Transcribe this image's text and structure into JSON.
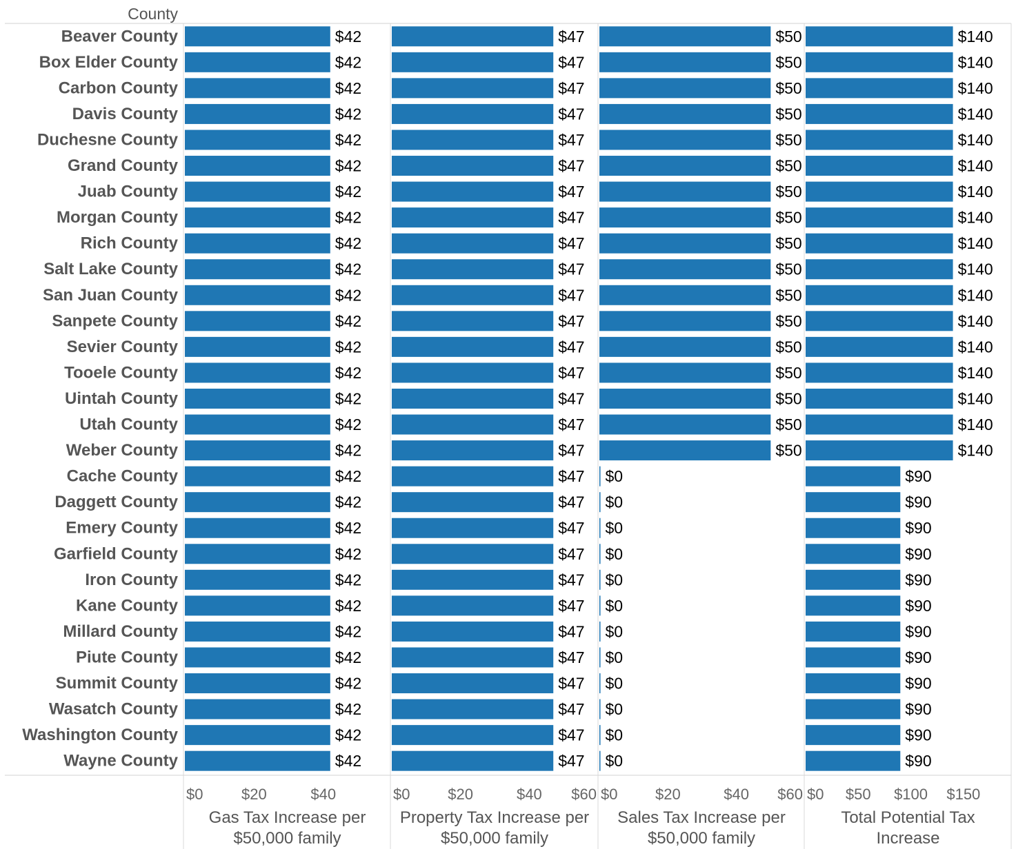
{
  "chart_data": {
    "type": "bar",
    "orientation": "horizontal",
    "row_header": "County",
    "categories": [
      "Beaver County",
      "Box Elder County",
      "Carbon County",
      "Davis County",
      "Duchesne County",
      "Grand County",
      "Juab County",
      "Morgan County",
      "Rich County",
      "Salt Lake County",
      "San Juan County",
      "Sanpete County",
      "Sevier County",
      "Tooele County",
      "Uintah County",
      "Utah County",
      "Weber County",
      "Cache County",
      "Daggett County",
      "Emery County",
      "Garfield County",
      "Iron County",
      "Kane County",
      "Millard County",
      "Piute County",
      "Summit County",
      "Wasatch County",
      "Washington County",
      "Wayne County"
    ],
    "series": [
      {
        "name": "Gas Tax Increase per $50,000 family",
        "values": [
          42,
          42,
          42,
          42,
          42,
          42,
          42,
          42,
          42,
          42,
          42,
          42,
          42,
          42,
          42,
          42,
          42,
          42,
          42,
          42,
          42,
          42,
          42,
          42,
          42,
          42,
          42,
          42,
          42
        ],
        "xlim": [
          0,
          53
        ],
        "ticks": [
          0,
          20,
          40
        ]
      },
      {
        "name": "Property Tax Increase per $50,000 family",
        "values": [
          47,
          47,
          47,
          47,
          47,
          47,
          47,
          47,
          47,
          47,
          47,
          47,
          47,
          47,
          47,
          47,
          47,
          47,
          47,
          47,
          47,
          47,
          47,
          47,
          47,
          47,
          47,
          47,
          47
        ],
        "xlim": [
          0,
          60
        ],
        "ticks": [
          0,
          20,
          40,
          60
        ]
      },
      {
        "name": "Sales Tax Increase per $50,000 family",
        "values": [
          50,
          50,
          50,
          50,
          50,
          50,
          50,
          50,
          50,
          50,
          50,
          50,
          50,
          50,
          50,
          50,
          50,
          0,
          0,
          0,
          0,
          0,
          0,
          0,
          0,
          0,
          0,
          0,
          0
        ],
        "xlim": [
          0,
          60
        ],
        "ticks": [
          0,
          20,
          40,
          60
        ]
      },
      {
        "name": "Total Potential Tax Increase",
        "values": [
          140,
          140,
          140,
          140,
          140,
          140,
          140,
          140,
          140,
          140,
          140,
          140,
          140,
          140,
          140,
          140,
          140,
          90,
          90,
          90,
          90,
          90,
          90,
          90,
          90,
          90,
          90,
          90,
          90
        ],
        "xlim": [
          0,
          196
        ],
        "ticks": [
          0,
          50,
          100,
          150
        ]
      }
    ],
    "value_format": "$",
    "bar_color": "#1f77b4",
    "grid": false,
    "legend": "none"
  }
}
